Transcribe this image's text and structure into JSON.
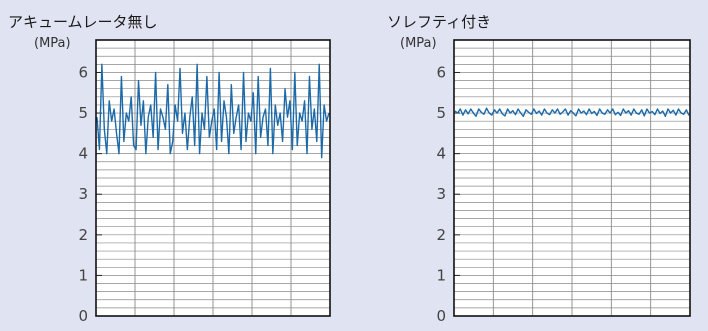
{
  "background_color": "#dfe3f2",
  "line_color": "#1d6aa8",
  "chart_data": [
    {
      "type": "line",
      "title": "アキュームレータ無し",
      "ylabel": "(MPa)",
      "ylim": [
        0,
        6.8
      ],
      "yticks": [
        0,
        1,
        2,
        3,
        4,
        5,
        6
      ],
      "grid": true,
      "series": [
        {
          "values": [
            4.9,
            4.1,
            6.2,
            4.6,
            4.0,
            5.3,
            4.8,
            5.1,
            4.5,
            4.0,
            5.9,
            4.3,
            5.0,
            4.8,
            5.4,
            4.2,
            4.1,
            5.8,
            4.7,
            5.3,
            4.0,
            4.9,
            5.2,
            4.4,
            6.0,
            4.1,
            5.1,
            4.9,
            4.6,
            5.7,
            4.0,
            4.3,
            5.2,
            4.8,
            6.1,
            4.5,
            5.0,
            4.1,
            4.9,
            5.4,
            4.2,
            6.2,
            4.0,
            5.0,
            4.6,
            5.9,
            4.4,
            4.8,
            5.1,
            4.1,
            6.0,
            4.3,
            5.3,
            4.9,
            4.0,
            5.7,
            4.5,
            4.9,
            5.2,
            4.1,
            6.0,
            4.3,
            5.0,
            4.8,
            5.5,
            4.0,
            5.9,
            4.4,
            4.9,
            5.1,
            4.2,
            6.1,
            4.0,
            5.2,
            4.7,
            5.0,
            4.3,
            5.6,
            4.9,
            5.3,
            4.1,
            6.0,
            4.2,
            5.0,
            4.8,
            5.3,
            4.0,
            5.9,
            4.6,
            5.1,
            4.3,
            6.2,
            3.9,
            5.2,
            4.8,
            5.0
          ]
        }
      ]
    },
    {
      "type": "line",
      "title": "ソレフティ付き",
      "ylabel": "(MPa)",
      "ylim": [
        0,
        6.8
      ],
      "yticks": [
        0,
        1,
        2,
        3,
        4,
        5,
        6
      ],
      "grid": true,
      "series": [
        {
          "values": [
            5.05,
            5.0,
            5.1,
            4.95,
            5.08,
            4.98,
            5.1,
            5.0,
            4.92,
            5.1,
            5.02,
            4.97,
            5.12,
            5.0,
            4.95,
            5.08,
            5.0,
            5.1,
            4.98,
            4.93,
            5.1,
            5.0,
            5.06,
            4.96,
            5.1,
            5.0,
            4.92,
            5.08,
            5.02,
            4.97,
            5.1,
            4.99,
            5.05,
            4.95,
            5.1,
            5.0,
            4.96,
            5.08,
            5.0,
            5.1,
            4.97,
            5.03,
            5.1,
            4.95,
            5.06,
            5.0,
            4.93,
            5.1,
            5.0,
            5.05,
            4.96,
            5.1,
            4.99,
            5.04,
            4.94,
            5.1,
            5.0,
            4.97,
            5.08,
            5.0,
            5.1,
            4.96,
            5.02,
            4.94,
            5.1,
            5.0,
            5.06,
            4.95,
            5.1,
            5.0,
            4.97,
            5.08,
            4.93,
            5.1,
            5.0,
            5.04,
            4.96,
            5.1,
            4.99,
            5.05,
            4.92,
            5.1,
            5.0,
            5.07,
            4.95,
            5.1,
            5.0,
            4.97,
            5.08,
            4.94
          ]
        }
      ]
    }
  ]
}
